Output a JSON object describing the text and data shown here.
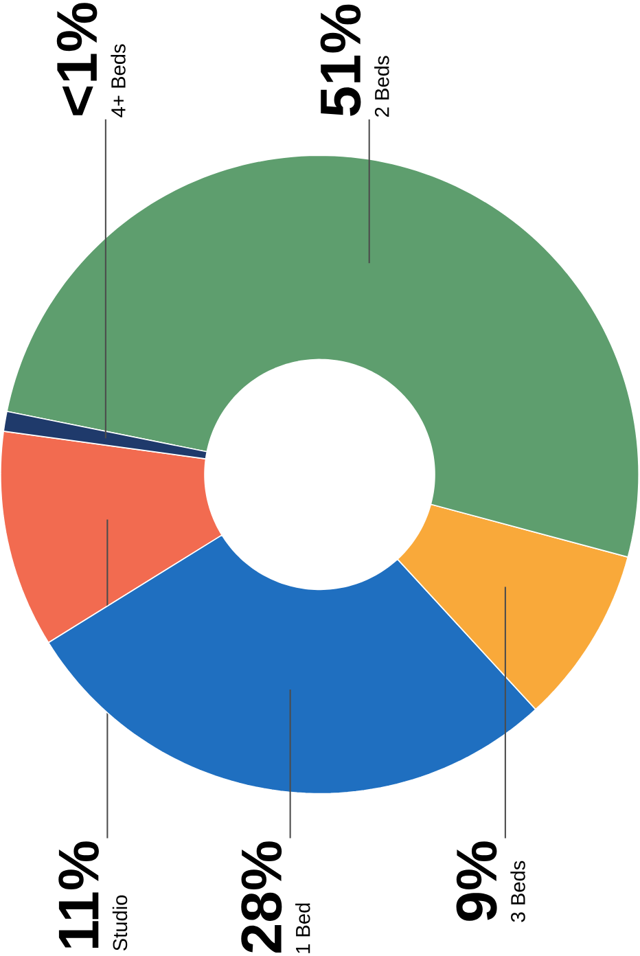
{
  "chart_data": {
    "type": "donut",
    "categories": [
      "Studio",
      "1 Bed",
      "3 Beds",
      "2 Beds",
      "4+ Beds"
    ],
    "values": [
      11,
      28,
      9,
      51,
      1
    ],
    "value_labels": [
      "11%",
      "28%",
      "9%",
      "51%",
      "<1%"
    ],
    "colors": [
      "#f26b50",
      "#1f6fc0",
      "#f9a93a",
      "#5e9e6e",
      "#1f3a6b"
    ]
  }
}
